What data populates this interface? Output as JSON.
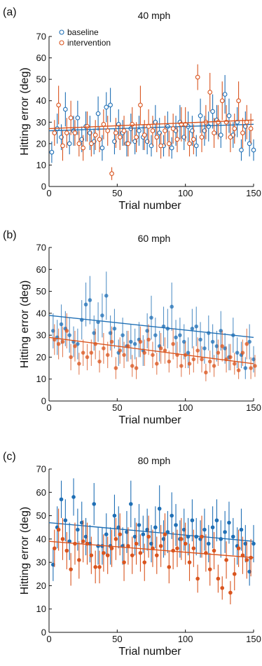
{
  "colors": {
    "baseline": "#1f6fb5",
    "intervention": "#d9541e",
    "axis": "#111111"
  },
  "chart_data": [
    {
      "type": "scatter",
      "panel_label": "(a)",
      "title": "40 mph",
      "xlabel": "Trial number",
      "ylabel": "Hitting error (deg)",
      "xlim": [
        0,
        150
      ],
      "ylim": [
        0,
        70
      ],
      "xticks": [
        0,
        50,
        100,
        150
      ],
      "yticks": [
        0,
        10,
        20,
        30,
        40,
        50,
        60,
        70
      ],
      "marker": "open",
      "legend": {
        "position": "top-left",
        "entries": [
          "baseline",
          "intervention"
        ]
      },
      "series": [
        {
          "name": "baseline",
          "x": [
            2,
            6,
            9,
            12,
            15,
            18,
            21,
            24,
            27,
            30,
            33,
            36,
            39,
            42,
            45,
            48,
            51,
            54,
            57,
            60,
            63,
            66,
            69,
            72,
            75,
            78,
            81,
            84,
            87,
            90,
            93,
            96,
            99,
            102,
            105,
            108,
            111,
            114,
            117,
            120,
            123,
            126,
            129,
            132,
            135,
            138,
            141,
            144,
            147,
            150
          ],
          "y": [
            16,
            27,
            23,
            36,
            20,
            26,
            32,
            22,
            28,
            25,
            21,
            34,
            18,
            37,
            38,
            21,
            29,
            25,
            20,
            27,
            21,
            26,
            23,
            21,
            19,
            30,
            25,
            19,
            28,
            18,
            26,
            30,
            23,
            28,
            26,
            19,
            33,
            26,
            28,
            35,
            31,
            24,
            43,
            33,
            24,
            30,
            17,
            28,
            20,
            17
          ],
          "err": [
            5,
            7,
            6,
            8,
            5,
            7,
            8,
            6,
            7,
            8,
            6,
            8,
            6,
            7,
            8,
            6,
            7,
            6,
            6,
            7,
            6,
            7,
            6,
            6,
            5,
            8,
            7,
            5,
            7,
            5,
            7,
            8,
            6,
            7,
            7,
            5,
            8,
            7,
            7,
            8,
            7,
            6,
            9,
            8,
            6,
            7,
            5,
            7,
            6,
            5
          ],
          "fit": {
            "x": [
              0,
              150
            ],
            "y": [
              26,
              29
            ]
          }
        },
        {
          "name": "intervention",
          "x": [
            4,
            7,
            10,
            13,
            16,
            19,
            22,
            25,
            28,
            31,
            34,
            37,
            40,
            43,
            46,
            49,
            52,
            55,
            58,
            61,
            64,
            67,
            70,
            73,
            76,
            79,
            82,
            85,
            88,
            91,
            94,
            97,
            100,
            103,
            106,
            109,
            112,
            115,
            118,
            121,
            124,
            127,
            130,
            133,
            136,
            139,
            142,
            145,
            148
          ],
          "y": [
            25,
            38,
            19,
            25,
            32,
            25,
            20,
            18,
            28,
            20,
            24,
            22,
            29,
            26,
            6,
            25,
            23,
            26,
            20,
            29,
            23,
            38,
            24,
            28,
            26,
            23,
            19,
            26,
            20,
            27,
            22,
            29,
            29,
            20,
            22,
            51,
            23,
            30,
            44,
            25,
            30,
            40,
            30,
            23,
            27,
            40,
            25,
            30,
            27
          ],
          "err": [
            6,
            9,
            7,
            7,
            8,
            6,
            6,
            6,
            7,
            6,
            7,
            6,
            7,
            7,
            3,
            7,
            6,
            7,
            6,
            8,
            7,
            9,
            7,
            8,
            7,
            7,
            6,
            7,
            6,
            7,
            6,
            8,
            8,
            6,
            7,
            6,
            7,
            8,
            9,
            7,
            8,
            9,
            8,
            7,
            7,
            9,
            7,
            8,
            7
          ],
          "fit": {
            "x": [
              0,
              150
            ],
            "y": [
              27,
              31
            ]
          }
        }
      ]
    },
    {
      "type": "scatter",
      "panel_label": "(b)",
      "title": "60 mph",
      "xlabel": "Trial number",
      "ylabel": "Hitting error (deg)",
      "xlim": [
        0,
        150
      ],
      "ylim": [
        0,
        70
      ],
      "xticks": [
        0,
        50,
        100,
        150
      ],
      "yticks": [
        0,
        10,
        20,
        30,
        40,
        50,
        60,
        70
      ],
      "marker": "filled-light",
      "series": [
        {
          "name": "baseline",
          "x": [
            3,
            6,
            9,
            12,
            15,
            18,
            21,
            24,
            27,
            30,
            33,
            36,
            39,
            42,
            45,
            48,
            51,
            54,
            57,
            60,
            63,
            66,
            69,
            72,
            75,
            78,
            81,
            84,
            87,
            90,
            93,
            96,
            99,
            102,
            105,
            108,
            111,
            114,
            117,
            120,
            123,
            126,
            129,
            132,
            135,
            138,
            141,
            144,
            147,
            150
          ],
          "y": [
            32,
            29,
            35,
            33,
            30,
            27,
            26,
            37,
            44,
            46,
            31,
            36,
            39,
            48,
            31,
            33,
            22,
            30,
            25,
            27,
            26,
            28,
            23,
            32,
            38,
            30,
            25,
            34,
            33,
            43,
            29,
            30,
            27,
            22,
            33,
            34,
            28,
            24,
            31,
            27,
            25,
            32,
            24,
            20,
            30,
            22,
            21,
            15,
            27,
            19
          ],
          "err": [
            8,
            8,
            9,
            8,
            8,
            7,
            7,
            9,
            10,
            11,
            8,
            9,
            10,
            11,
            8,
            9,
            6,
            8,
            7,
            8,
            7,
            8,
            7,
            8,
            10,
            8,
            7,
            9,
            9,
            11,
            8,
            8,
            8,
            7,
            9,
            9,
            8,
            7,
            8,
            8,
            7,
            9,
            7,
            6,
            8,
            7,
            6,
            5,
            8,
            6
          ],
          "fit": {
            "x": [
              0,
              150
            ],
            "y": [
              39,
              29
            ]
          }
        },
        {
          "name": "intervention",
          "x": [
            4,
            7,
            10,
            13,
            16,
            19,
            22,
            25,
            28,
            31,
            34,
            37,
            40,
            43,
            46,
            49,
            52,
            55,
            58,
            61,
            64,
            67,
            70,
            73,
            76,
            79,
            82,
            85,
            88,
            91,
            94,
            97,
            100,
            103,
            106,
            109,
            112,
            115,
            118,
            121,
            124,
            127,
            130,
            133,
            136,
            139,
            142,
            145,
            148,
            151
          ],
          "y": [
            28,
            26,
            27,
            32,
            20,
            25,
            17,
            22,
            20,
            22,
            26,
            18,
            24,
            21,
            27,
            15,
            23,
            21,
            25,
            16,
            15,
            27,
            22,
            28,
            21,
            17,
            24,
            23,
            18,
            26,
            21,
            16,
            21,
            17,
            19,
            23,
            19,
            13,
            18,
            16,
            22,
            25,
            19,
            20,
            17,
            14,
            22,
            26,
            15,
            16
          ],
          "err": [
            7,
            7,
            7,
            8,
            6,
            7,
            5,
            6,
            6,
            6,
            7,
            5,
            7,
            6,
            7,
            5,
            6,
            6,
            7,
            5,
            5,
            7,
            6,
            7,
            6,
            5,
            7,
            6,
            5,
            7,
            6,
            5,
            6,
            5,
            6,
            6,
            6,
            4,
            5,
            5,
            6,
            7,
            6,
            6,
            5,
            4,
            6,
            7,
            5,
            5
          ],
          "fit": {
            "x": [
              0,
              150
            ],
            "y": [
              29,
              17
            ]
          }
        }
      ]
    },
    {
      "type": "scatter",
      "panel_label": "(c)",
      "title": "80 mph",
      "xlabel": "Trial number",
      "ylabel": "Hitting error (deg)",
      "xlim": [
        0,
        150
      ],
      "ylim": [
        0,
        70
      ],
      "xticks": [
        0,
        50,
        100,
        150
      ],
      "yticks": [
        0,
        10,
        20,
        30,
        40,
        50,
        60,
        70
      ],
      "marker": "filled",
      "series": [
        {
          "name": "baseline",
          "x": [
            3,
            6,
            9,
            12,
            15,
            18,
            21,
            24,
            27,
            30,
            33,
            36,
            39,
            42,
            45,
            48,
            51,
            54,
            57,
            60,
            63,
            66,
            69,
            72,
            75,
            78,
            81,
            84,
            87,
            90,
            93,
            96,
            99,
            102,
            105,
            108,
            111,
            114,
            117,
            120,
            123,
            126,
            129,
            132,
            135,
            138,
            141,
            144,
            147,
            150
          ],
          "y": [
            29,
            45,
            57,
            48,
            39,
            58,
            44,
            47,
            41,
            38,
            55,
            37,
            37,
            42,
            37,
            50,
            45,
            37,
            43,
            55,
            41,
            46,
            42,
            44,
            38,
            45,
            53,
            40,
            43,
            50,
            46,
            40,
            44,
            41,
            48,
            41,
            40,
            44,
            38,
            45,
            48,
            40,
            43,
            47,
            41,
            37,
            44,
            38,
            26,
            38
          ],
          "err": [
            7,
            9,
            8,
            9,
            8,
            8,
            9,
            9,
            8,
            8,
            9,
            8,
            8,
            9,
            8,
            9,
            9,
            8,
            9,
            10,
            8,
            9,
            8,
            9,
            8,
            9,
            10,
            8,
            9,
            10,
            9,
            8,
            9,
            8,
            9,
            8,
            8,
            9,
            8,
            9,
            9,
            8,
            9,
            9,
            8,
            8,
            9,
            8,
            6,
            8
          ],
          "fit": {
            "x": [
              0,
              150
            ],
            "y": [
              47,
              39
            ]
          }
        },
        {
          "name": "intervention",
          "x": [
            4,
            7,
            10,
            13,
            16,
            19,
            22,
            25,
            28,
            31,
            34,
            37,
            40,
            43,
            46,
            49,
            52,
            55,
            58,
            61,
            64,
            67,
            70,
            73,
            76,
            79,
            82,
            85,
            88,
            91,
            94,
            97,
            100,
            103,
            106,
            109,
            112,
            115,
            118,
            121,
            124,
            127,
            130,
            133,
            136,
            139,
            142,
            145,
            148
          ],
          "y": [
            36,
            44,
            40,
            35,
            27,
            38,
            31,
            39,
            38,
            33,
            28,
            28,
            34,
            33,
            36,
            40,
            42,
            30,
            37,
            33,
            38,
            34,
            30,
            41,
            36,
            33,
            37,
            42,
            28,
            35,
            36,
            40,
            38,
            30,
            36,
            23,
            41,
            34,
            27,
            35,
            23,
            19,
            31,
            17,
            25,
            36,
            33,
            31,
            32
          ],
          "err": [
            8,
            9,
            9,
            8,
            7,
            9,
            8,
            9,
            9,
            8,
            7,
            7,
            8,
            8,
            8,
            9,
            9,
            8,
            8,
            8,
            9,
            8,
            8,
            9,
            8,
            8,
            9,
            9,
            7,
            8,
            8,
            9,
            9,
            8,
            8,
            6,
            9,
            8,
            7,
            8,
            6,
            5,
            8,
            5,
            7,
            8,
            8,
            8,
            8
          ],
          "fit": {
            "x": [
              0,
              150
            ],
            "y": [
              39,
              32
            ]
          }
        }
      ]
    }
  ]
}
